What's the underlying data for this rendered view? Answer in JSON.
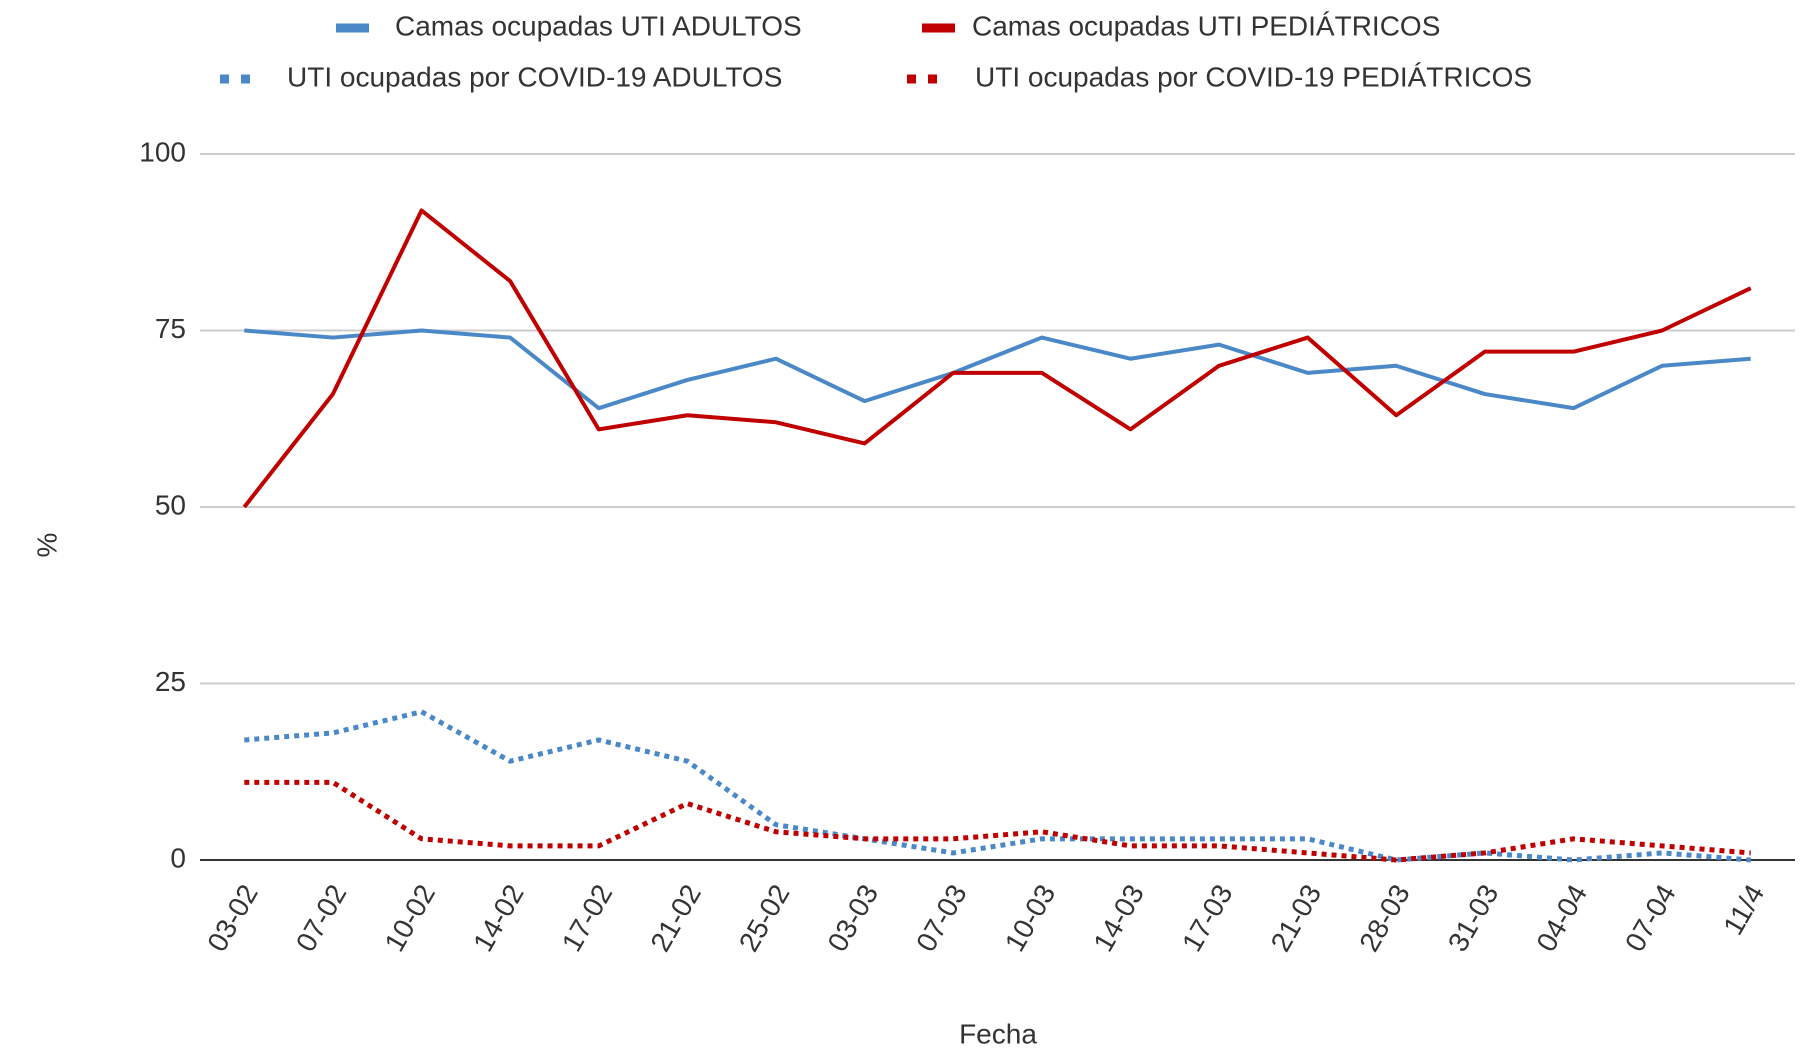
{
  "chart_data": {
    "type": "line",
    "x_label": "Fecha",
    "y_label": "%",
    "categories": [
      "03-02",
      "07-02",
      "10-02",
      "14-02",
      "17-02",
      "21-02",
      "25-02",
      "03-03",
      "07-03",
      "10-03",
      "14-03",
      "17-03",
      "21-03",
      "28-03",
      "31-03",
      "04-04",
      "07-04",
      "11/4"
    ],
    "series": [
      {
        "name": "Camas ocupadas UTI ADULTOS",
        "color": "#4a88c7",
        "dashed": false,
        "values": [
          75,
          74,
          75,
          74,
          64,
          68,
          71,
          65,
          69,
          74,
          71,
          73,
          69,
          70,
          66,
          64,
          70,
          71
        ]
      },
      {
        "name": "Camas ocupadas UTI PEDIÁTRICOS",
        "color": "#c00000",
        "dashed": false,
        "values": [
          50,
          66,
          92,
          82,
          61,
          63,
          62,
          59,
          69,
          69,
          61,
          70,
          74,
          63,
          72,
          72,
          75,
          81
        ]
      },
      {
        "name": "UTI ocupadas por COVID-19 ADULTOS",
        "color": "#4a88c7",
        "dashed": true,
        "values": [
          17,
          18,
          21,
          14,
          17,
          14,
          5,
          3,
          1,
          3,
          3,
          3,
          3,
          0,
          1,
          0,
          1,
          0
        ]
      },
      {
        "name": "UTI ocupadas por COVID-19 PEDIÁTRICOS",
        "color": "#c00000",
        "dashed": true,
        "values": [
          11,
          11,
          3,
          2,
          2,
          8,
          4,
          3,
          3,
          4,
          2,
          2,
          1,
          0,
          1,
          3,
          2,
          1
        ]
      }
    ],
    "ylim": [
      0,
      100
    ],
    "yticks": [
      0,
      25,
      50,
      75,
      100
    ],
    "grid": true,
    "legend": "top"
  }
}
